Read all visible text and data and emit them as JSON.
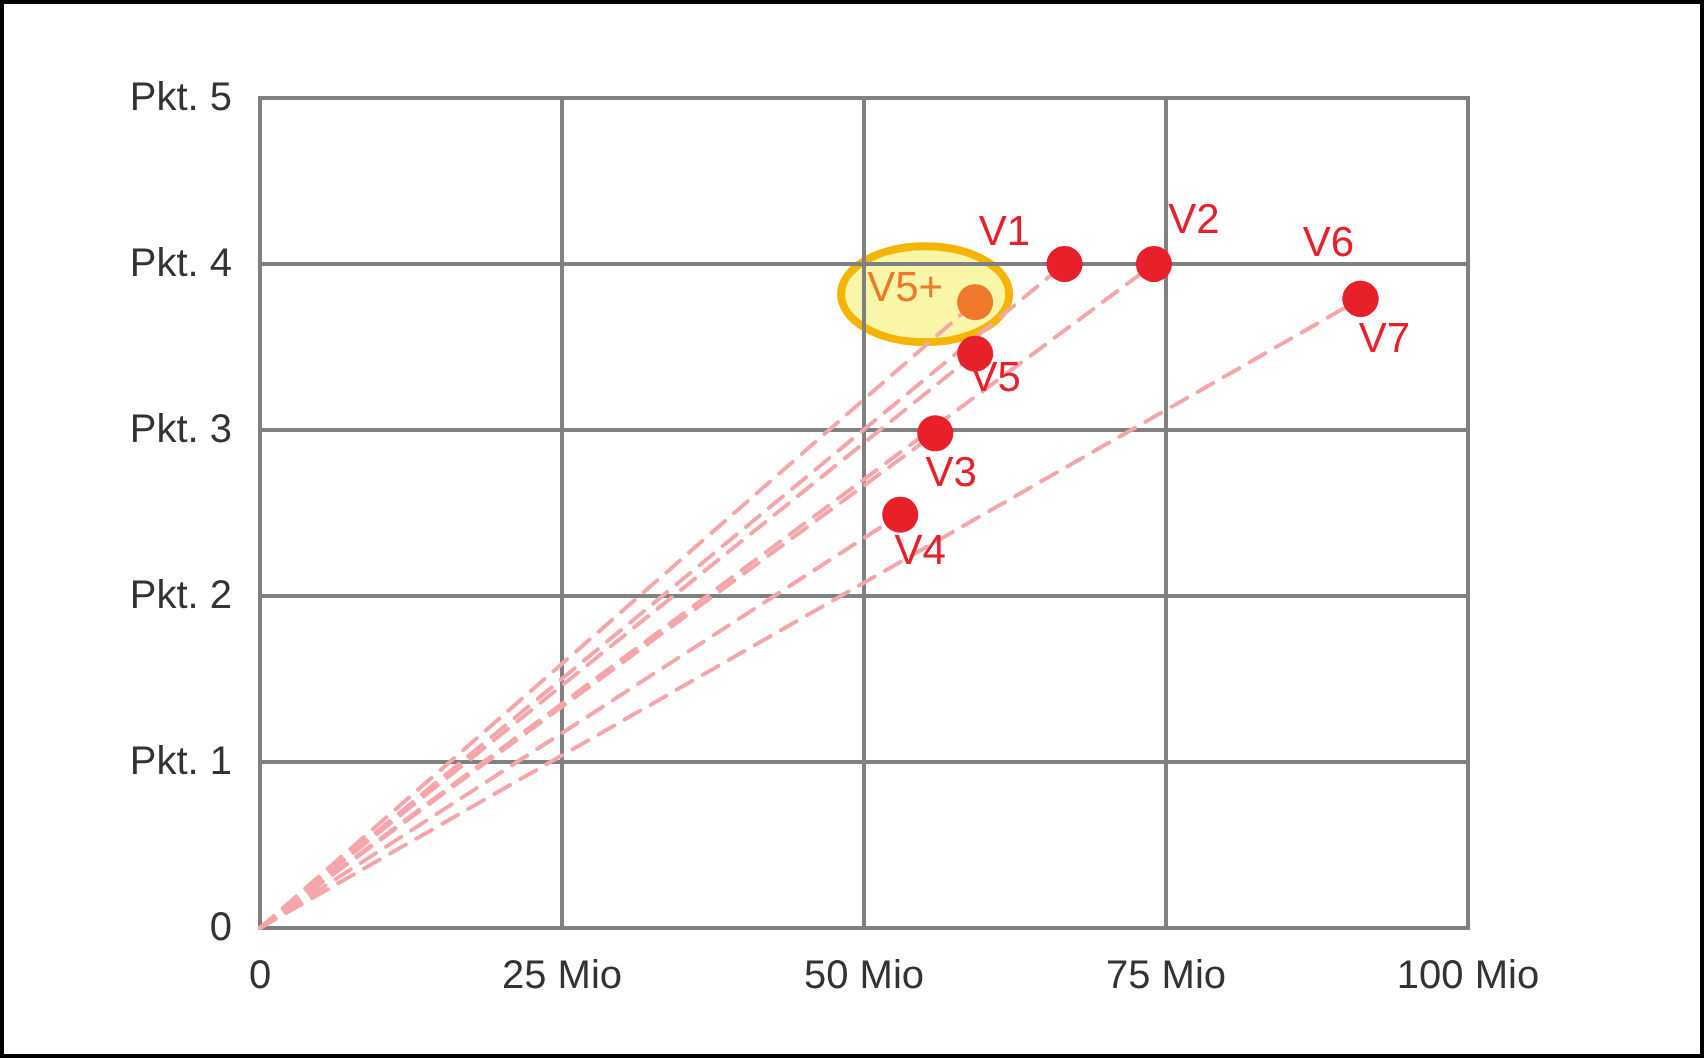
{
  "chart_data": {
    "type": "scatter",
    "x": [
      66.6,
      74.0,
      55.9,
      53.0,
      59.2,
      91.1,
      91.1
    ],
    "xlim": [
      0,
      100
    ],
    "xticks": [
      {
        "value": 0,
        "label": "0"
      },
      {
        "value": 25,
        "label": "25 Mio"
      },
      {
        "value": 50,
        "label": "50 Mio"
      },
      {
        "value": 75,
        "label": "75 Mio"
      },
      {
        "value": 100,
        "label": "100 Mio"
      }
    ],
    "ylim": [
      0,
      5
    ],
    "yticks": [
      {
        "value": 0,
        "label": "0"
      },
      {
        "value": 1,
        "label": "Pkt. 1"
      },
      {
        "value": 2,
        "label": "Pkt. 2"
      },
      {
        "value": 3,
        "label": "Pkt. 3"
      },
      {
        "value": 4,
        "label": "Pkt. 4"
      },
      {
        "value": 5,
        "label": "Pkt. 5"
      }
    ],
    "grid": true,
    "marker": "circle",
    "series": [
      {
        "type": "line",
        "color": "#f4a6ab",
        "line_style": "dashed",
        "marker": "none",
        "x": [
          0,
          66.6
        ],
        "values": [
          0,
          4.0
        ]
      },
      {
        "type": "line",
        "color": "#f4a6ab",
        "line_style": "dashed",
        "marker": "none",
        "x": [
          0,
          74.0
        ],
        "values": [
          0,
          4.0
        ]
      },
      {
        "type": "line",
        "color": "#f4a6ab",
        "line_style": "dashed",
        "marker": "none",
        "x": [
          0,
          59.2
        ],
        "values": [
          0,
          3.77
        ]
      },
      {
        "type": "line",
        "color": "#f4a6ab",
        "line_style": "dashed",
        "marker": "none",
        "x": [
          0,
          59.2
        ],
        "values": [
          0,
          3.46
        ]
      },
      {
        "type": "line",
        "color": "#f4a6ab",
        "line_style": "dashed",
        "marker": "none",
        "x": [
          0,
          55.9
        ],
        "values": [
          0,
          2.98
        ]
      },
      {
        "type": "line",
        "color": "#f4a6ab",
        "line_style": "dashed",
        "marker": "none",
        "x": [
          0,
          53.0
        ],
        "values": [
          0,
          2.49
        ]
      },
      {
        "type": "line",
        "color": "#f4a6ab",
        "line_style": "dashed",
        "marker": "none",
        "x": [
          0,
          91.1
        ],
        "values": [
          0,
          3.79
        ]
      },
      {
        "color": "#e8202a",
        "values": [
          4.0,
          4.0,
          2.98,
          2.49,
          3.46,
          3.79,
          3.79
        ],
        "value_labels": [
          "V1",
          "V2",
          "V3",
          "V4",
          "V5",
          "V6",
          "V7"
        ]
      },
      {
        "color": "#f0782a",
        "x": [
          59.2
        ],
        "values": [
          3.77
        ],
        "value_labels": [
          "V5+"
        ]
      }
    ]
  }
}
